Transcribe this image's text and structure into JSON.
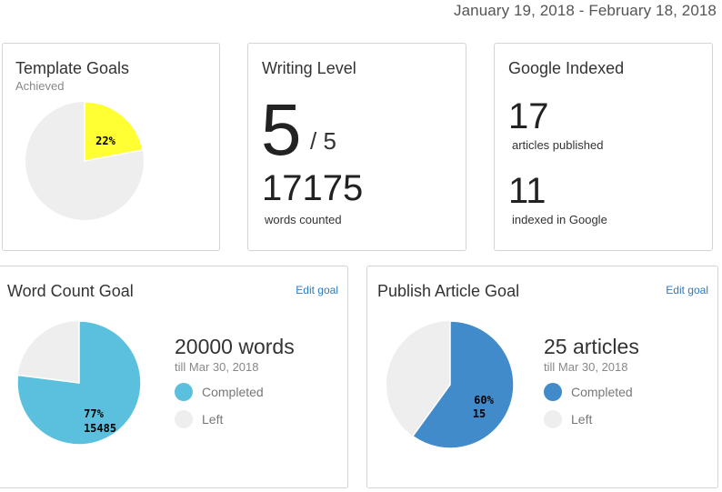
{
  "header": {
    "date_range": "January 19, 2018 - February 18, 2018"
  },
  "template_goals": {
    "title": "Template Goals",
    "subtitle": "Achieved",
    "pie": {
      "achieved_percent": 22,
      "label": "22%",
      "colors": {
        "achieved": "#ffff33",
        "remaining": "#eeeeee"
      }
    }
  },
  "writing_level": {
    "title": "Writing Level",
    "level": "5",
    "level_max": "/ 5",
    "words": "17175",
    "words_label": "words counted"
  },
  "google_indexed": {
    "title": "Google Indexed",
    "published_count": "17",
    "published_label": "articles published",
    "indexed_count": "11",
    "indexed_label": "indexed in Google"
  },
  "word_count_goal": {
    "title": "Word Count Goal",
    "edit_label": "Edit goal",
    "goal": "20000 words",
    "till": "till Mar 30, 2018",
    "completed_percent": 77,
    "pie_label_percent": "77%",
    "pie_label_value": "15485",
    "legend": [
      {
        "label": "Completed",
        "color": "#5bc0de"
      },
      {
        "label": "Left",
        "color": "#eeeeee"
      }
    ]
  },
  "publish_article_goal": {
    "title": "Publish Article Goal",
    "edit_label": "Edit goal",
    "goal": "25 articles",
    "till": "till Mar 30, 2018",
    "completed_percent": 60,
    "pie_label_percent": "60%",
    "pie_label_value": "15",
    "legend": [
      {
        "label": "Completed",
        "color": "#428bca"
      },
      {
        "label": "Left",
        "color": "#eeeeee"
      }
    ]
  }
}
